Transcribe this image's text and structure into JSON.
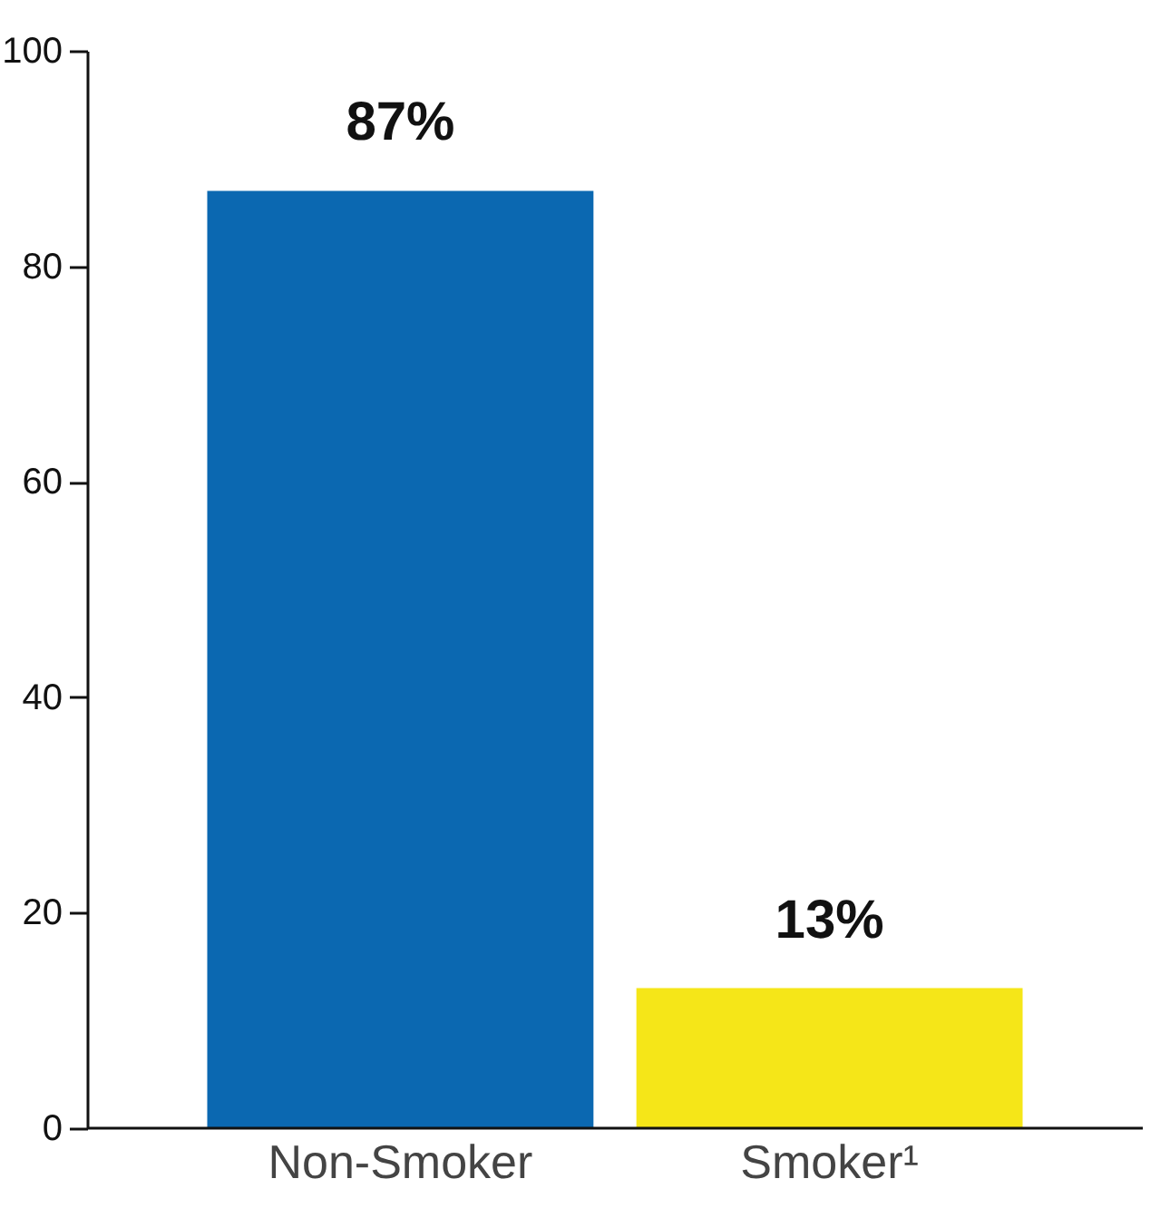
{
  "chart_data": {
    "type": "bar",
    "categories": [
      "Non-Smoker",
      "Smoker¹"
    ],
    "values": [
      87,
      13
    ],
    "colors": [
      "#0b68b1",
      "#f5e618"
    ],
    "value_labels": [
      "87%",
      "13%"
    ],
    "ylim": [
      0,
      100
    ],
    "yticks": [
      0,
      20,
      40,
      60,
      80,
      100
    ]
  }
}
